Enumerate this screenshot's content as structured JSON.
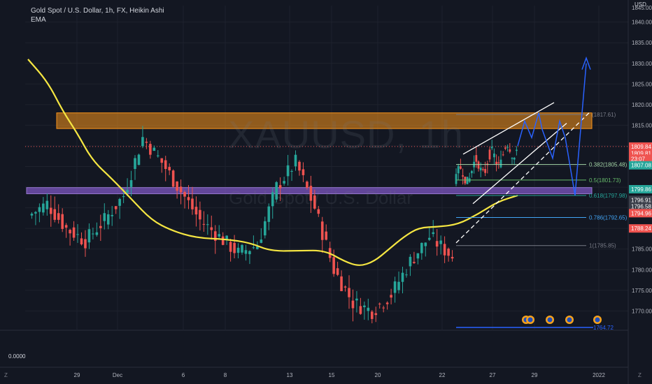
{
  "header": {
    "title": "Gold Spot / U.S. Dollar, 1h, FX, Heikin Ashi",
    "indicator": "EMA"
  },
  "watermark": {
    "symbol": "XAUUSD, 1h",
    "name": "Gold Spot / U.S. Dollar"
  },
  "axis": {
    "currency": "USD",
    "sub_pane_value": "0.0000",
    "corner_left": "Z",
    "corner_right": "Z"
  },
  "colors": {
    "background": "#131722",
    "up_candle": "#26a69a",
    "down_candle": "#ef5350",
    "ema": "#f5e642",
    "resistance_zone": "#f7931a",
    "support_zone": "#7e57c2",
    "projection": "#2962ff",
    "channel": "#ffffff"
  },
  "chart_data": {
    "type": "candlestick",
    "title": "Gold Spot / U.S. Dollar, 1h, FX, Heikin Ashi",
    "ylim": [
      1765.5,
      1844
    ],
    "y_ticks": [
      1770,
      1775,
      1780,
      1785,
      1790,
      1795,
      1800,
      1805,
      1810,
      1815,
      1820,
      1825,
      1830,
      1835,
      1840
    ],
    "y_tick_labels": [
      "1770.00",
      "1775.00",
      "1780.00",
      "1785.00",
      "1790.00",
      "1795.00",
      "1800.00",
      "1805.00",
      "1810.00",
      "1815.00",
      "1820.00",
      "1825.00",
      "1830.00",
      "1835.00",
      "1840.00"
    ],
    "top_tick_label": "1845.00",
    "x_labels": [
      "29",
      "Dec",
      "6",
      "8",
      "13",
      "15",
      "20",
      "22",
      "27",
      "29",
      "2022"
    ],
    "ema_points": [
      [
        0,
        1831
      ],
      [
        4,
        1825.5
      ],
      [
        7,
        1818.5
      ],
      [
        10,
        1813
      ],
      [
        13,
        1806.5
      ],
      [
        17,
        1802
      ],
      [
        21,
        1797
      ],
      [
        25,
        1792
      ],
      [
        29,
        1789.5
      ],
      [
        34,
        1787.7
      ],
      [
        40,
        1787.4
      ],
      [
        45,
        1786.5
      ],
      [
        49,
        1784.5
      ],
      [
        55,
        1784.6
      ],
      [
        60,
        1784.7
      ],
      [
        64,
        1782
      ],
      [
        67,
        1780.8
      ],
      [
        70,
        1782
      ],
      [
        73,
        1785
      ],
      [
        76,
        1788
      ],
      [
        79,
        1790.2
      ],
      [
        83,
        1790.4
      ],
      [
        87,
        1791
      ],
      [
        91,
        1793.5
      ],
      [
        95,
        1796.5
      ],
      [
        99,
        1798
      ]
    ],
    "close_series": [
      1793,
      1796,
      1790,
      1787,
      1792,
      1798,
      1812,
      1806,
      1799,
      1792,
      1788,
      1784,
      1786,
      1800,
      1806,
      1795,
      1780,
      1772,
      1770,
      1774,
      1782,
      1788,
      1784,
      1780,
      1776,
      1772,
      1770,
      1772,
      1778,
      1784,
      1782,
      1779,
      1776,
      1774,
      1780,
      1784,
      1788,
      1786,
      1784,
      1782,
      1780,
      1778,
      1776,
      1780,
      1786,
      1790,
      1788,
      1784,
      1781,
      1784,
      1790,
      1788,
      1786,
      1782,
      1778,
      1774,
      1771,
      1769,
      1768,
      1773,
      1782,
      1788,
      1793,
      1799,
      1807,
      1813,
      1808,
      1804,
      1799,
      1796,
      1793,
      1791,
      1793,
      1795,
      1797,
      1794,
      1790,
      1788,
      1789,
      1793,
      1797,
      1800,
      1803,
      1806,
      1808,
      1809,
      1805,
      1807,
      1809,
      1808,
      1810,
      1808,
      1807,
      1808,
      1809
    ],
    "zones": [
      {
        "name": "resistance",
        "from": 1814.2,
        "to": 1818.0
      },
      {
        "name": "support",
        "from": 1798.4,
        "to": 1799.9
      }
    ],
    "fib_levels": [
      {
        "label": "(1817.61)",
        "price": 1817.61
      },
      {
        "label": "0.382(1805.48)",
        "price": 1805.48
      },
      {
        "label": "0.5(1801.73)",
        "price": 1801.73
      },
      {
        "label": "0.618(1797.98)",
        "price": 1797.98
      },
      {
        "label": "0.786(1792.65)",
        "price": 1792.65
      },
      {
        "label": "1(1785.85)",
        "price": 1785.85
      }
    ],
    "price_tags": [
      {
        "label": "1809.84",
        "price": 1809.84,
        "color": "#ef5350"
      },
      {
        "label": "1809.81",
        "price": 1808.2,
        "color": "#ef5350"
      },
      {
        "label": "23:07",
        "price": 1806.9,
        "color": "#ef5350"
      },
      {
        "label": "1807.08",
        "price": 1805.3,
        "color": "#26a69a"
      },
      {
        "label": "1799.86",
        "price": 1799.5,
        "color": "#26a69a"
      },
      {
        "label": "1796.91",
        "price": 1796.9,
        "color": "#3b3f4a"
      },
      {
        "label": "1796.58",
        "price": 1795.35,
        "color": "#3b3f4a"
      },
      {
        "label": "1794.96",
        "price": 1793.7,
        "color": "#ef5350"
      },
      {
        "label": "1788.24",
        "price": 1790.0,
        "color": "#ef5350"
      }
    ],
    "bottom_fib_label": "1764.72"
  }
}
